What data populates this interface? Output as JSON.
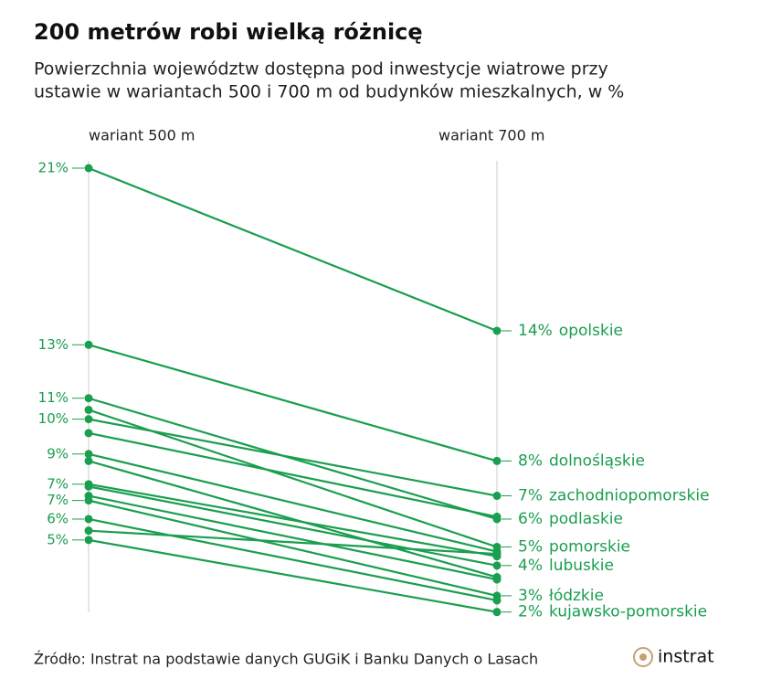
{
  "chart_data": {
    "type": "slope",
    "title": "200 metrów robi wielką różnicę",
    "subtitle": [
      "Powierzchnia województw dostępna pod inwestycje wiatrowe przy",
      "ustawie w wariantach 500 i 700 m od budynków mieszkalnych, w %"
    ],
    "categories": [
      "wariant 500 m",
      "wariant 700 m"
    ],
    "color": "#1a9e4f",
    "ylim": [
      0,
      21
    ],
    "series": [
      {
        "name": "opolskie",
        "values": [
          21.0,
          14.0
        ],
        "value_labels": [
          "21%",
          "14%"
        ]
      },
      {
        "name": "dolnośląskie",
        "values": [
          13.4,
          8.4
        ],
        "value_labels": [
          "13%",
          "8%"
        ]
      },
      {
        "name": "podlaskie",
        "values": [
          11.1,
          5.9
        ],
        "value_labels": [
          "11%",
          "6%"
        ]
      },
      {
        "name": "pomorskie",
        "values": [
          10.6,
          4.7
        ],
        "value_labels": [
          null,
          "5%"
        ]
      },
      {
        "name": "zachodniopomorskie",
        "values": [
          10.2,
          6.9
        ],
        "value_labels": [
          "10%",
          "7%"
        ]
      },
      {
        "values": [
          9.6,
          6.0
        ],
        "value_labels": [
          null,
          null
        ]
      },
      {
        "values": [
          8.7,
          4.5
        ],
        "value_labels": [
          "9%",
          null
        ]
      },
      {
        "values": [
          8.4,
          3.4
        ],
        "value_labels": [
          null,
          null
        ]
      },
      {
        "values": [
          7.4,
          4.3
        ],
        "value_labels": [
          "7%",
          null
        ]
      },
      {
        "name": "lubuskie",
        "values": [
          7.3,
          3.9
        ],
        "value_labels": [
          null,
          "4%"
        ]
      },
      {
        "values": [
          6.9,
          3.3
        ],
        "value_labels": [
          null,
          null
        ]
      },
      {
        "name": "łódzkie",
        "values": [
          6.7,
          2.6
        ],
        "value_labels": [
          "7%",
          "3%"
        ]
      },
      {
        "values": [
          5.9,
          2.4
        ],
        "value_labels": [
          "6%",
          null
        ]
      },
      {
        "values": [
          5.4,
          4.4
        ],
        "value_labels": [
          null,
          null
        ]
      },
      {
        "name": "kujawsko-pomorskie",
        "values": [
          5.0,
          1.9
        ],
        "value_labels": [
          "5%",
          "2%"
        ]
      }
    ],
    "source": "Źródło: Instrat na podstawie danych GUGiK i Banku Danych o Lasach",
    "logo": "instrat"
  }
}
